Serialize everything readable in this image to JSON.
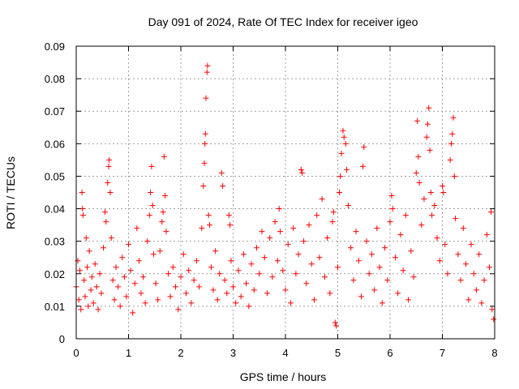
{
  "chart_data": {
    "type": "scatter",
    "title": "Day 091 of 2024, Rate Of TEC Index for receiver igeo",
    "xlabel": "GPS time / hours",
    "ylabel": "ROTI / TECUs",
    "xlim": [
      0,
      8
    ],
    "ylim": [
      0,
      0.09
    ],
    "grid": true,
    "marker": "+",
    "marker_color": "#ff0000",
    "x_ticks": [
      "0",
      "1",
      "2",
      "3",
      "4",
      "5",
      "6",
      "7",
      "8"
    ],
    "y_ticks": [
      "0",
      "0.01",
      "0.02",
      "0.03",
      "0.04",
      "0.05",
      "0.06",
      "0.07",
      "0.08",
      "0.09"
    ],
    "series": [
      {
        "name": "ROTI",
        "points": [
          [
            0.0,
            0.016
          ],
          [
            0.03,
            0.024
          ],
          [
            0.05,
            0.012
          ],
          [
            0.07,
            0.021
          ],
          [
            0.09,
            0.009
          ],
          [
            0.11,
            0.045
          ],
          [
            0.12,
            0.04
          ],
          [
            0.13,
            0.038
          ],
          [
            0.15,
            0.018
          ],
          [
            0.17,
            0.013
          ],
          [
            0.19,
            0.031
          ],
          [
            0.21,
            0.022
          ],
          [
            0.23,
            0.01
          ],
          [
            0.25,
            0.027
          ],
          [
            0.28,
            0.015
          ],
          [
            0.3,
            0.019
          ],
          [
            0.33,
            0.011
          ],
          [
            0.36,
            0.023
          ],
          [
            0.39,
            0.016
          ],
          [
            0.42,
            0.009
          ],
          [
            0.45,
            0.02
          ],
          [
            0.48,
            0.014
          ],
          [
            0.52,
            0.028
          ],
          [
            0.55,
            0.039
          ],
          [
            0.57,
            0.036
          ],
          [
            0.6,
            0.048
          ],
          [
            0.62,
            0.053
          ],
          [
            0.63,
            0.055
          ],
          [
            0.65,
            0.045
          ],
          [
            0.67,
            0.031
          ],
          [
            0.7,
            0.018
          ],
          [
            0.73,
            0.012
          ],
          [
            0.76,
            0.022
          ],
          [
            0.8,
            0.016
          ],
          [
            0.84,
            0.01
          ],
          [
            0.88,
            0.025
          ],
          [
            0.92,
            0.019
          ],
          [
            0.96,
            0.013
          ],
          [
            1.0,
            0.029
          ],
          [
            1.04,
            0.021
          ],
          [
            1.08,
            0.008
          ],
          [
            1.12,
            0.017
          ],
          [
            1.16,
            0.034
          ],
          [
            1.2,
            0.024
          ],
          [
            1.24,
            0.014
          ],
          [
            1.28,
            0.019
          ],
          [
            1.32,
            0.011
          ],
          [
            1.36,
            0.03
          ],
          [
            1.4,
            0.038
          ],
          [
            1.42,
            0.045
          ],
          [
            1.44,
            0.053
          ],
          [
            1.46,
            0.041
          ],
          [
            1.48,
            0.026
          ],
          [
            1.52,
            0.017
          ],
          [
            1.56,
            0.012
          ],
          [
            1.6,
            0.027
          ],
          [
            1.64,
            0.036
          ],
          [
            1.66,
            0.039
          ],
          [
            1.68,
            0.056
          ],
          [
            1.7,
            0.044
          ],
          [
            1.72,
            0.033
          ],
          [
            1.76,
            0.02
          ],
          [
            1.8,
            0.013
          ],
          [
            1.85,
            0.022
          ],
          [
            1.9,
            0.016
          ],
          [
            1.95,
            0.009
          ],
          [
            2.0,
            0.019
          ],
          [
            2.05,
            0.026
          ],
          [
            2.1,
            0.014
          ],
          [
            2.15,
            0.021
          ],
          [
            2.2,
            0.011
          ],
          [
            2.25,
            0.018
          ],
          [
            2.3,
            0.024
          ],
          [
            2.35,
            0.016
          ],
          [
            2.4,
            0.034
          ],
          [
            2.43,
            0.047
          ],
          [
            2.45,
            0.054
          ],
          [
            2.46,
            0.06
          ],
          [
            2.47,
            0.063
          ],
          [
            2.48,
            0.074
          ],
          [
            2.5,
            0.082
          ],
          [
            2.51,
            0.084
          ],
          [
            2.53,
            0.038
          ],
          [
            2.55,
            0.035
          ],
          [
            2.58,
            0.022
          ],
          [
            2.62,
            0.015
          ],
          [
            2.66,
            0.027
          ],
          [
            2.7,
            0.012
          ],
          [
            2.74,
            0.02
          ],
          [
            2.78,
            0.051
          ],
          [
            2.8,
            0.047
          ],
          [
            2.84,
            0.018
          ],
          [
            2.88,
            0.014
          ],
          [
            2.92,
            0.038
          ],
          [
            2.94,
            0.035
          ],
          [
            2.96,
            0.024
          ],
          [
            3.0,
            0.016
          ],
          [
            3.05,
            0.011
          ],
          [
            3.1,
            0.021
          ],
          [
            3.15,
            0.013
          ],
          [
            3.2,
            0.026
          ],
          [
            3.25,
            0.017
          ],
          [
            3.3,
            0.01
          ],
          [
            3.35,
            0.023
          ],
          [
            3.4,
            0.015
          ],
          [
            3.45,
            0.028
          ],
          [
            3.5,
            0.02
          ],
          [
            3.55,
            0.033
          ],
          [
            3.6,
            0.025
          ],
          [
            3.65,
            0.014
          ],
          [
            3.7,
            0.031
          ],
          [
            3.75,
            0.019
          ],
          [
            3.8,
            0.036
          ],
          [
            3.85,
            0.024
          ],
          [
            3.88,
            0.04
          ],
          [
            3.9,
            0.033
          ],
          [
            3.95,
            0.021
          ],
          [
            4.0,
            0.015
          ],
          [
            4.05,
            0.029
          ],
          [
            4.1,
            0.011
          ],
          [
            4.15,
            0.034
          ],
          [
            4.2,
            0.02
          ],
          [
            4.25,
            0.026
          ],
          [
            4.3,
            0.052
          ],
          [
            4.32,
            0.051
          ],
          [
            4.35,
            0.03
          ],
          [
            4.4,
            0.017
          ],
          [
            4.45,
            0.035
          ],
          [
            4.5,
            0.023
          ],
          [
            4.55,
            0.012
          ],
          [
            4.6,
            0.038
          ],
          [
            4.65,
            0.025
          ],
          [
            4.7,
            0.043
          ],
          [
            4.75,
            0.019
          ],
          [
            4.8,
            0.031
          ],
          [
            4.85,
            0.014
          ],
          [
            4.9,
            0.036
          ],
          [
            4.92,
            0.039
          ],
          [
            4.95,
            0.005
          ],
          [
            4.97,
            0.004
          ],
          [
            5.0,
            0.022
          ],
          [
            5.03,
            0.045
          ],
          [
            5.05,
            0.05
          ],
          [
            5.07,
            0.057
          ],
          [
            5.1,
            0.064
          ],
          [
            5.12,
            0.062
          ],
          [
            5.15,
            0.06
          ],
          [
            5.17,
            0.052
          ],
          [
            5.2,
            0.041
          ],
          [
            5.25,
            0.028
          ],
          [
            5.3,
            0.018
          ],
          [
            5.35,
            0.033
          ],
          [
            5.4,
            0.024
          ],
          [
            5.45,
            0.013
          ],
          [
            5.48,
            0.053
          ],
          [
            5.5,
            0.059
          ],
          [
            5.55,
            0.03
          ],
          [
            5.6,
            0.02
          ],
          [
            5.65,
            0.026
          ],
          [
            5.7,
            0.015
          ],
          [
            5.75,
            0.034
          ],
          [
            5.8,
            0.022
          ],
          [
            5.85,
            0.011
          ],
          [
            5.9,
            0.028
          ],
          [
            5.95,
            0.018
          ],
          [
            6.0,
            0.036
          ],
          [
            6.03,
            0.044
          ],
          [
            6.05,
            0.04
          ],
          [
            6.1,
            0.025
          ],
          [
            6.15,
            0.014
          ],
          [
            6.2,
            0.032
          ],
          [
            6.25,
            0.021
          ],
          [
            6.3,
            0.038
          ],
          [
            6.35,
            0.012
          ],
          [
            6.4,
            0.027
          ],
          [
            6.45,
            0.019
          ],
          [
            6.5,
            0.051
          ],
          [
            6.52,
            0.067
          ],
          [
            6.54,
            0.056
          ],
          [
            6.56,
            0.048
          ],
          [
            6.6,
            0.035
          ],
          [
            6.65,
            0.043
          ],
          [
            6.7,
            0.062
          ],
          [
            6.72,
            0.066
          ],
          [
            6.74,
            0.071
          ],
          [
            6.76,
            0.058
          ],
          [
            6.78,
            0.045
          ],
          [
            6.8,
            0.038
          ],
          [
            6.85,
            0.041
          ],
          [
            6.9,
            0.031
          ],
          [
            6.95,
            0.024
          ],
          [
            7.0,
            0.047
          ],
          [
            7.02,
            0.045
          ],
          [
            7.05,
            0.029
          ],
          [
            7.1,
            0.02
          ],
          [
            7.15,
            0.055
          ],
          [
            7.17,
            0.06
          ],
          [
            7.19,
            0.063
          ],
          [
            7.21,
            0.068
          ],
          [
            7.23,
            0.05
          ],
          [
            7.25,
            0.037
          ],
          [
            7.3,
            0.026
          ],
          [
            7.35,
            0.018
          ],
          [
            7.4,
            0.034
          ],
          [
            7.45,
            0.023
          ],
          [
            7.5,
            0.012
          ],
          [
            7.55,
            0.029
          ],
          [
            7.6,
            0.02
          ],
          [
            7.65,
            0.015
          ],
          [
            7.7,
            0.026
          ],
          [
            7.75,
            0.011
          ],
          [
            7.8,
            0.018
          ],
          [
            7.85,
            0.032
          ],
          [
            7.9,
            0.022
          ],
          [
            7.93,
            0.039
          ],
          [
            7.95,
            0.009
          ],
          [
            7.98,
            0.006
          ]
        ]
      }
    ]
  }
}
